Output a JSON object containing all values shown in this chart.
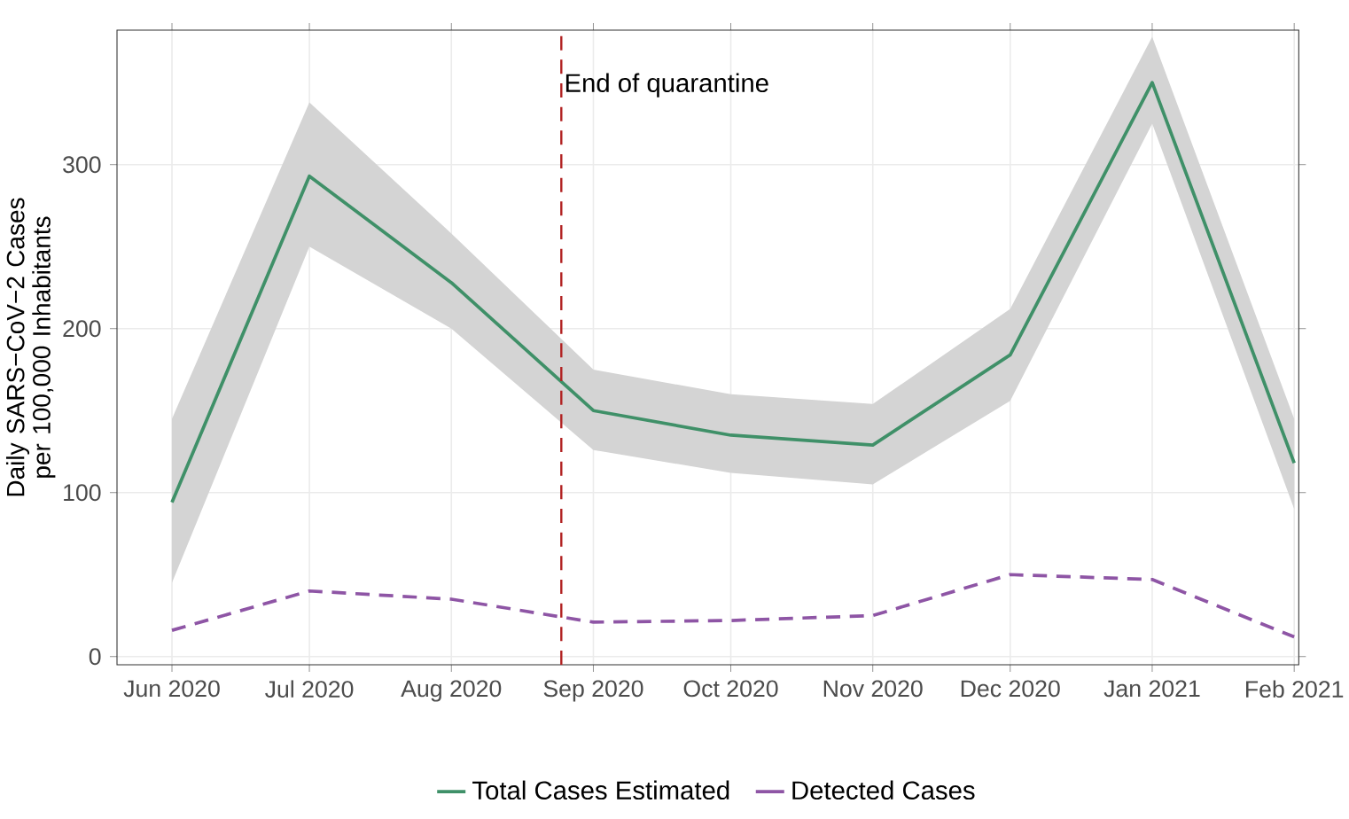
{
  "chart_data": {
    "type": "line",
    "ylabel": "Daily  SARS−CoV−2 Cases per 100,000 Inhabitants",
    "x": [
      "2020-06-01",
      "2020-07-01",
      "2020-08-01",
      "2020-09-01",
      "2020-10-01",
      "2020-11-01",
      "2020-12-01",
      "2021-01-01",
      "2021-02-01"
    ],
    "series": [
      {
        "name": "Total Cases Estimated",
        "color": "#3f9068",
        "line_style": "solid",
        "values": [
          94,
          293,
          228,
          150,
          135,
          129,
          184,
          350,
          118
        ],
        "lower": [
          45,
          250,
          200,
          126,
          112,
          105,
          156,
          325,
          90
        ],
        "upper": [
          145,
          338,
          258,
          175,
          160,
          154,
          212,
          378,
          145
        ]
      },
      {
        "name": "Detected Cases",
        "color": "#8e55a5",
        "line_style": "dashed",
        "values": [
          16,
          40,
          35,
          21,
          22,
          25,
          50,
          47,
          12
        ]
      }
    ],
    "xlim": [
      "2020-05-20",
      "2021-02-02"
    ],
    "xticks": [
      {
        "value": "2020-06-01",
        "label": "Jun 2020"
      },
      {
        "value": "2020-07-01",
        "label": "Jul 2020"
      },
      {
        "value": "2020-08-01",
        "label": "Aug 2020"
      },
      {
        "value": "2020-09-01",
        "label": "Sep 2020"
      },
      {
        "value": "2020-10-01",
        "label": "Oct 2020"
      },
      {
        "value": "2020-11-01",
        "label": "Nov 2020"
      },
      {
        "value": "2020-12-01",
        "label": "Dec 2020"
      },
      {
        "value": "2021-01-01",
        "label": "Jan 2021"
      },
      {
        "value": "2021-02-01",
        "label": "Feb 2021"
      }
    ],
    "ylim": [
      -5,
      382
    ],
    "yticks": [
      0,
      100,
      200,
      300
    ],
    "ref_lines": [
      {
        "axis": "x",
        "value": "2020-08-25",
        "label": "End of quarantine",
        "color": "#b22222",
        "line_style": "dashed"
      }
    ],
    "grid": true,
    "legend": "bottom",
    "marker": "none"
  }
}
